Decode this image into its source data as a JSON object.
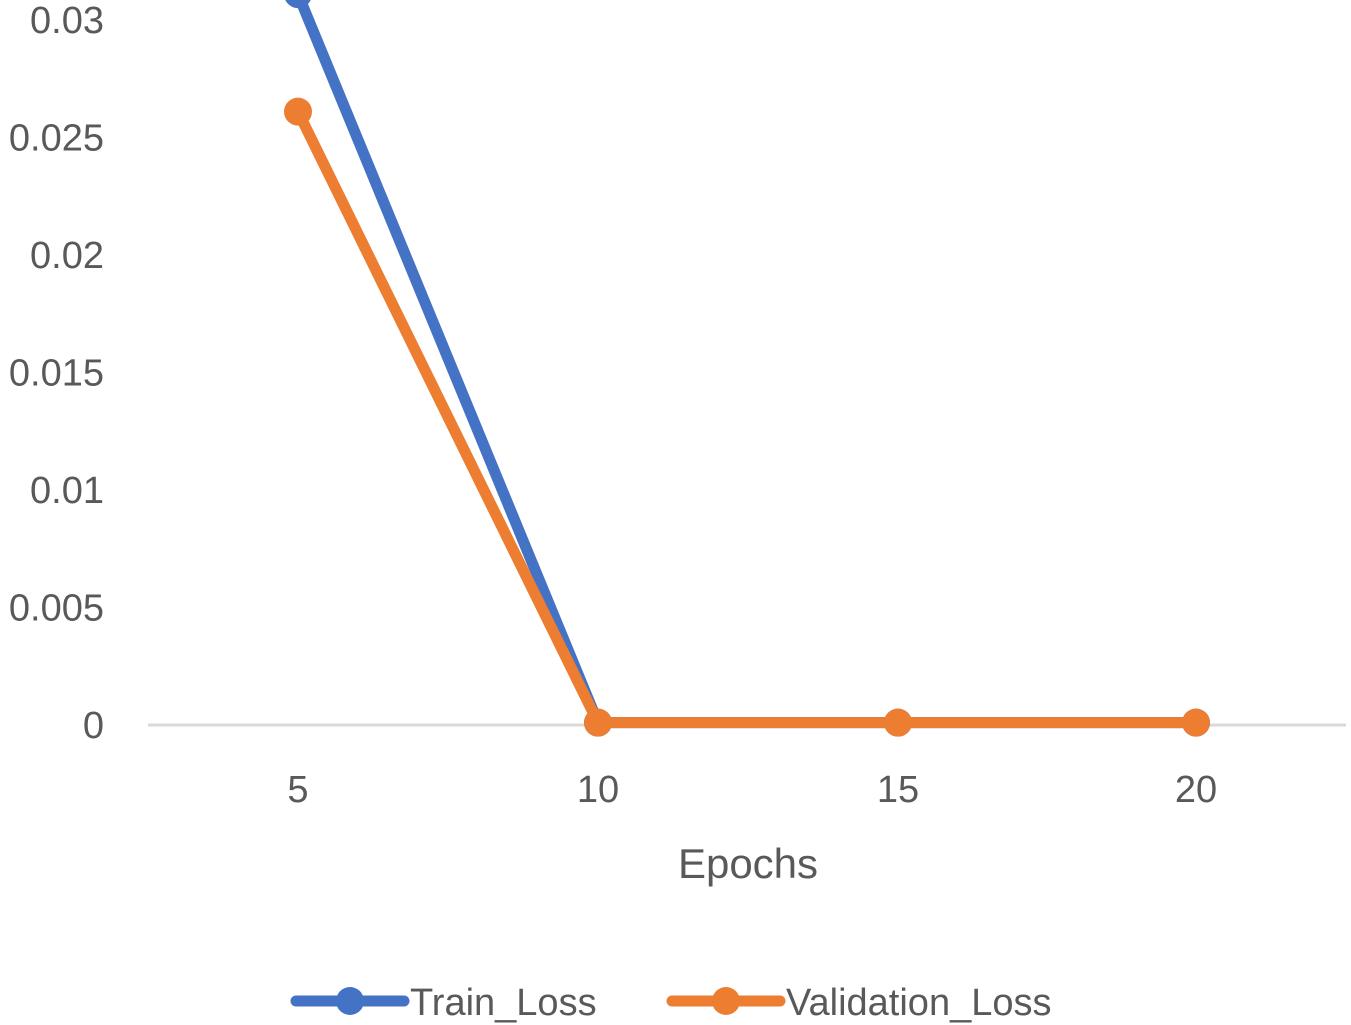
{
  "chart_data": {
    "type": "line",
    "title": "",
    "xlabel": "Epochs",
    "ylabel": "",
    "categories": [
      "5",
      "10",
      "15",
      "20"
    ],
    "x": [
      5,
      10,
      15,
      20
    ],
    "ylim": [
      0,
      0.03
    ],
    "y_ticks": [
      "0",
      "0.005",
      "0.01",
      "0.015",
      "0.02",
      "0.025",
      "0.03"
    ],
    "y_tick_values": [
      0,
      0.005,
      0.01,
      0.015,
      0.02,
      0.025,
      0.03
    ],
    "grid": false,
    "legend_position": "bottom",
    "series": [
      {
        "name": "Train_Loss",
        "color": "#4472C4",
        "values": [
          0.0311,
          0.0001,
          0.0001,
          0.0001
        ]
      },
      {
        "name": "Validation_Loss",
        "color": "#ED7D31",
        "values": [
          0.0261,
          0.0001,
          0.0001,
          0.0001
        ]
      }
    ]
  }
}
